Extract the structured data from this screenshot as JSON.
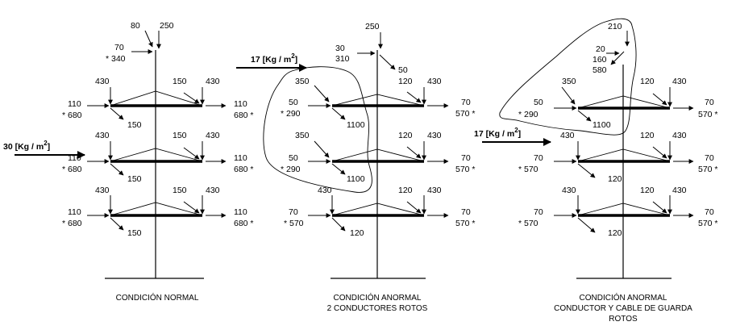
{
  "panels": [
    {
      "id": "normal",
      "caption": [
        "CONDICIÓN NORMAL"
      ],
      "top": {
        "vert": "250",
        "horiz": "80",
        "wind": "70",
        "wind_star": "* 340"
      },
      "arms": [
        {
          "lv": "430",
          "lt": "110",
          "lt2": "* 680",
          "ld": "150",
          "rv": "430",
          "rh": "150",
          "rt": "110",
          "rt2": "680 *"
        },
        {
          "lv": "430",
          "lt": "110",
          "lt2": "* 680",
          "ld": "150",
          "rv": "430",
          "rh": "150",
          "rt": "110",
          "rt2": "680 *"
        },
        {
          "lv": "430",
          "lt": "110",
          "lt2": "* 680",
          "ld": "150",
          "rv": "430",
          "rh": "150",
          "rt": "110",
          "rt2": "680 *"
        }
      ],
      "wind_label": "30 [Kg / m",
      "wind_exp": "2",
      "wind_close": "]"
    },
    {
      "id": "anormal-2",
      "caption": [
        "CONDICIÓN ANORMAL",
        "2 CONDUCTORES ROTOS"
      ],
      "top": {
        "vert": "250",
        "horiz": "30",
        "horiz2": "310",
        "diag": "50"
      },
      "arms": [
        {
          "lv": "350",
          "lt": "50",
          "lt2": "* 290",
          "ld": "1100",
          "rv": "430",
          "rh": "120",
          "rt": "70",
          "rt2": "570 *"
        },
        {
          "lv": "350",
          "lt": "50",
          "lt2": "* 290",
          "ld": "1100",
          "rv": "430",
          "rh": "120",
          "rt": "70",
          "rt2": "570 *"
        },
        {
          "lv": "430",
          "lt": "70",
          "lt2": "* 570",
          "ld": "120",
          "rv": "430",
          "rh": "120",
          "rt": "70",
          "rt2": "570 *"
        }
      ],
      "wind_label": "17 [Kg / m",
      "wind_exp": "2",
      "wind_close": "]"
    },
    {
      "id": "anormal-cable",
      "caption": [
        "CONDICIÓN ANORMAL",
        "CONDUCTOR Y CABLE DE GUARDA",
        "ROTOS"
      ],
      "top": {
        "vert": "210",
        "t1": "20",
        "t2": "160",
        "t3": "580"
      },
      "arms": [
        {
          "lv": "350",
          "lt": "50",
          "lt2": "*   290",
          "ld": "1100",
          "rv": "430",
          "rh": "120",
          "rt": "70",
          "rt2": "570 *"
        },
        {
          "lv": "430",
          "lt": "70",
          "lt2": "*   570",
          "ld": "120",
          "rv": "430",
          "rh": "120",
          "rt": "70",
          "rt2": "570 *"
        },
        {
          "lv": "430",
          "lt": "70",
          "lt2": "*   570",
          "ld": "120",
          "rv": "430",
          "rh": "120",
          "rt": "70",
          "rt2": "570 *"
        }
      ],
      "wind_label": "17 [Kg / m",
      "wind_exp": "2",
      "wind_close": "]"
    }
  ]
}
